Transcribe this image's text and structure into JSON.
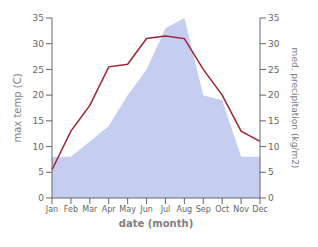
{
  "chart_data": {
    "type": "line",
    "categories": [
      "Jan",
      "Feb",
      "Mar",
      "Apr",
      "May",
      "Jun",
      "Jul",
      "Aug",
      "Sep",
      "Oct",
      "Nov",
      "Dec"
    ],
    "series": [
      {
        "type": "area",
        "axis": "y2",
        "color": "#c5cef0",
        "values": [
          8,
          8,
          11,
          14,
          20,
          25,
          33,
          35,
          20,
          19,
          8,
          8
        ]
      },
      {
        "type": "line",
        "axis": "y",
        "color": "#9b2335",
        "values": [
          5.5,
          13.0,
          18.0,
          25.5,
          26.0,
          31.0,
          31.5,
          31.0,
          25.0,
          20.0,
          13.0,
          11.0
        ]
      }
    ],
    "xlabel": "date (month)",
    "ylabel": "max temp (C)",
    "y2label": "med. precipitation (kg/m2)",
    "ylim": [
      0,
      35
    ],
    "yticks": [
      0,
      5,
      10,
      15,
      20,
      25,
      30,
      35
    ],
    "y2lim": [
      0,
      35
    ],
    "y2ticks": [
      0,
      5,
      10,
      15,
      20,
      25,
      30,
      35
    ],
    "grid": false
  }
}
